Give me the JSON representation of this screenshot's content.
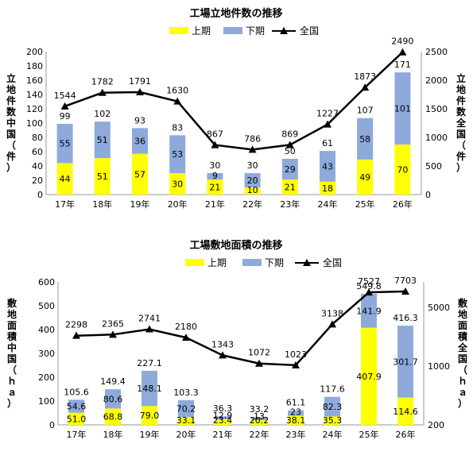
{
  "chart_data": [
    {
      "type": "bar",
      "title": "工場立地件数の推移",
      "categories": [
        "17年",
        "18年",
        "19年",
        "20年",
        "21年",
        "22年",
        "23年",
        "24年",
        "25年",
        "26年"
      ],
      "series": [
        {
          "name": "上期",
          "kind": "stacked-bar",
          "color": "#ffff00",
          "values": [
            44,
            51,
            57,
            30,
            21,
            10,
            21,
            18,
            49,
            70
          ]
        },
        {
          "name": "下期",
          "kind": "stacked-bar",
          "color": "#8eaadb",
          "values": [
            55,
            51,
            36,
            53,
            9,
            20,
            29,
            43,
            58,
            101
          ]
        },
        {
          "name": "全国",
          "kind": "line",
          "axis": "right",
          "color": "#000000",
          "marker": "triangle",
          "values": [
            1544,
            1782,
            1791,
            1630,
            867,
            786,
            869,
            1227,
            1873,
            2490
          ]
        }
      ],
      "totals": [
        99,
        102,
        93,
        83,
        30,
        30,
        50,
        61,
        107,
        171
      ],
      "ylabel_left": "立地件数中国（件）",
      "ylabel_right": "立地件数全国（件）",
      "yticks_left": [
        0,
        20,
        40,
        60,
        80,
        100,
        120,
        140,
        160,
        180,
        200
      ],
      "yticks_right": [
        0,
        500,
        1000,
        1500,
        2000,
        2500
      ],
      "ylim_left": [
        0,
        200
      ],
      "ylim_right": [
        0,
        2500
      ],
      "legend_position": "top",
      "grid": false
    },
    {
      "type": "bar",
      "title": "工場敷地面積の推移",
      "categories": [
        "17年",
        "18年",
        "19年",
        "20年",
        "21年",
        "22年",
        "23年",
        "24年",
        "25年",
        "26年"
      ],
      "series": [
        {
          "name": "上期",
          "kind": "stacked-bar",
          "color": "#ffff00",
          "values": [
            "51.0",
            "68.8",
            "79.0",
            "33.1",
            "23.4",
            "20.2",
            "38.1",
            "35.3",
            "407.9",
            "114.6"
          ]
        },
        {
          "name": "下期",
          "kind": "stacked-bar",
          "color": "#8eaadb",
          "values": [
            "54.6",
            "80.6",
            "148.1",
            "70.2",
            "12.9",
            "13",
            "23",
            "82.3",
            "141.9",
            "301.7"
          ]
        },
        {
          "name": "全国",
          "kind": "line",
          "axis": "right",
          "axis_scale": "log",
          "color": "#000000",
          "marker": "triangle",
          "values": [
            2298,
            2365,
            2741,
            2180,
            1343,
            1072,
            1023,
            3138,
            7527,
            7703
          ]
        }
      ],
      "totals": [
        "105.6",
        "149.4",
        "227.1",
        "103.3",
        "36.3",
        "33.2",
        "61.1",
        "117.6",
        "549.8",
        "416.3"
      ],
      "ylabel_left": "敷地面積中国（ｈａ）",
      "ylabel_right": "敷地面積全国（ｈａ）",
      "yticks_left": [
        0,
        100,
        200,
        300,
        400,
        500,
        600
      ],
      "yticks_right": [
        200,
        1000,
        5000
      ],
      "ylim_left": [
        0,
        600
      ],
      "ylim_right": [
        200,
        10000
      ],
      "legend_position": "top",
      "grid": false
    }
  ]
}
